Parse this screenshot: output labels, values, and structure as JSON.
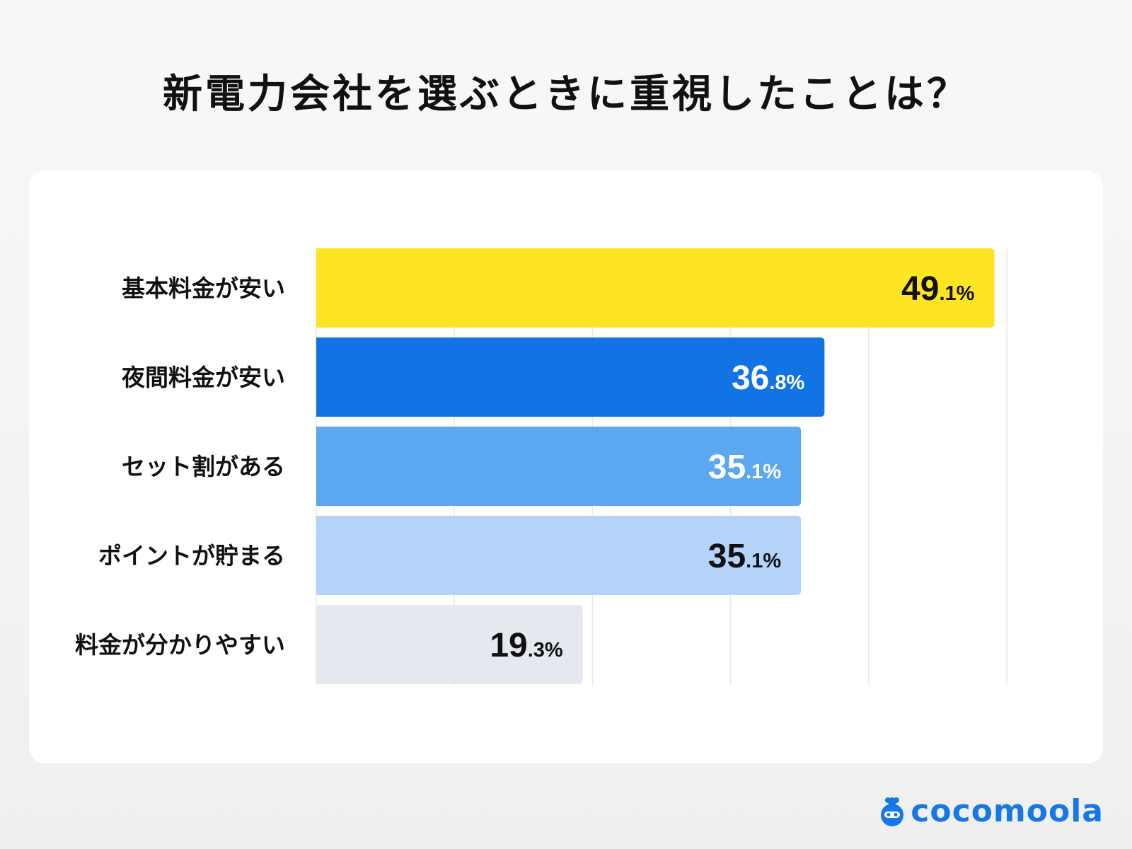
{
  "title": "新電力会社を選ぶときに重視したことは？",
  "brand": {
    "name": "cocomoola",
    "color": "#1677E6"
  },
  "chart_data": {
    "type": "bar",
    "orientation": "horizontal",
    "title": "新電力会社を選ぶときに重視したことは？",
    "categories": [
      "基本料金が安い",
      "夜間料金が安い",
      "セット割がある",
      "ポイントが貯まる",
      "料金が分かりやすい"
    ],
    "values": [
      49.1,
      36.8,
      35.1,
      35.1,
      19.3
    ],
    "labels": [
      "49.1%",
      "36.8%",
      "35.1%",
      "35.1%",
      "19.3%"
    ],
    "unit": "%",
    "colors": [
      "#FFE423",
      "#1273E4",
      "#5BA8F0",
      "#B3D4F8",
      "#E5E9EF"
    ],
    "label_colors": [
      "#111111",
      "#FFFFFF",
      "#FFFFFF",
      "#111111",
      "#111111"
    ],
    "xlim": [
      0,
      50
    ],
    "grid": true,
    "grid_step": 10,
    "legend": "none"
  }
}
